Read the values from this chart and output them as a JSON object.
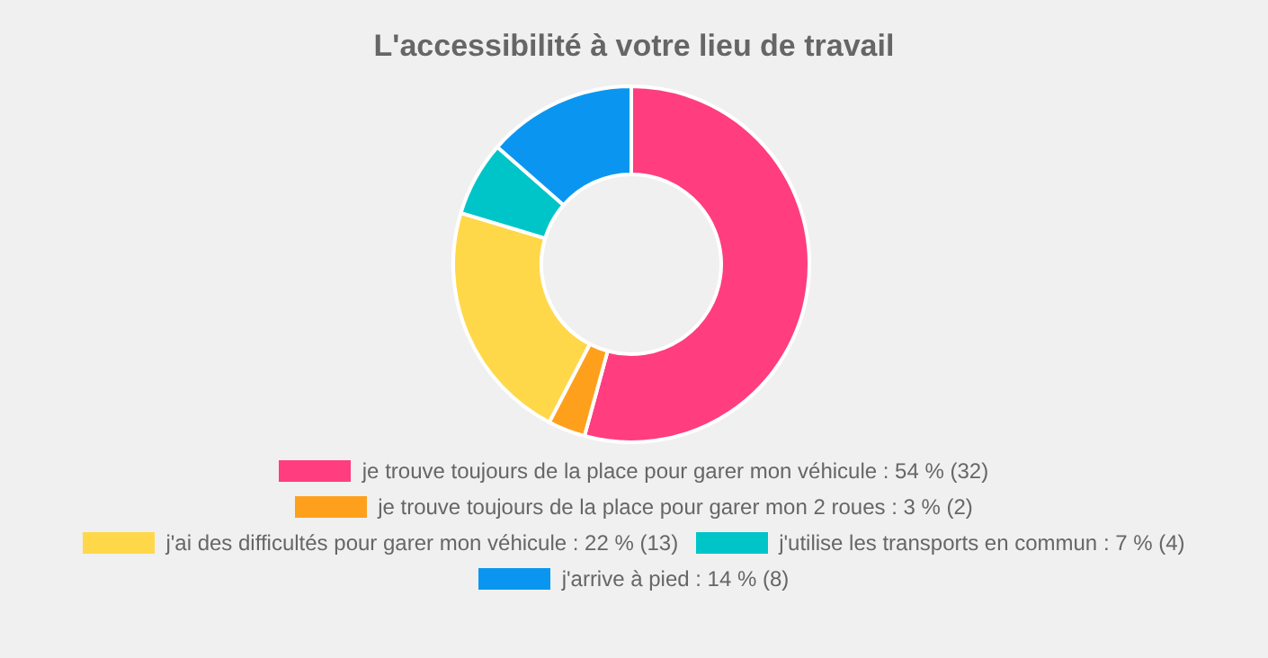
{
  "chart_data": {
    "type": "donut",
    "title": "L'accessibilité à votre lieu de travail",
    "categories": [
      "je trouve toujours de la place pour garer mon véhicule : 54 % (32)",
      "je trouve toujours de la place pour garer mon 2 roues : 3 % (2)",
      "j'ai des difficultés pour garer mon véhicule : 22 % (13)",
      "j'utilise les transports en commun : 7 % (4)",
      "j'arrive à pied : 14 % (8)"
    ],
    "values": [
      32,
      2,
      13,
      4,
      8
    ],
    "colors": [
      "#ff3d7f",
      "#ffa01c",
      "#ffd84a",
      "#00c5c8",
      "#0a96f0"
    ],
    "legend": "bottom"
  }
}
